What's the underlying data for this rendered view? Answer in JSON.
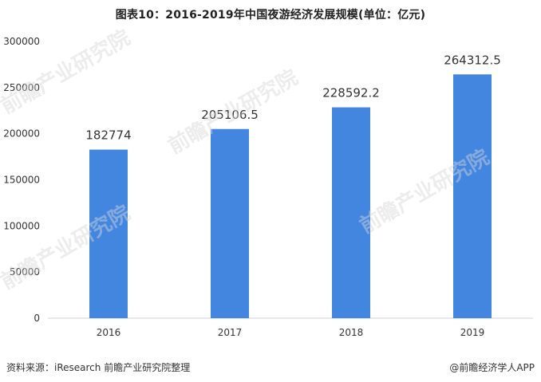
{
  "title": "图表10：2016-2019年中国夜游经济发展规模(单位：亿元)",
  "source": "资料来源：iResearch 前瞻产业研究院整理",
  "brand": "@前瞻经济学人APP",
  "colors": {
    "bar": "#4286e0",
    "axis": "#d0d0d0",
    "text": "#333333"
  },
  "chart_data": {
    "type": "bar",
    "title": "图表10：2016-2019年中国夜游经济发展规模(单位：亿元)",
    "xlabel": "",
    "ylabel": "",
    "categories": [
      "2016",
      "2017",
      "2018",
      "2019"
    ],
    "values": [
      182774,
      205106.5,
      228592.2,
      264312.5
    ],
    "value_labels": [
      "182774",
      "205106.5",
      "228592.2",
      "264312.5"
    ],
    "yticks": [
      "0",
      "50000",
      "100000",
      "150000",
      "200000",
      "250000",
      "300000"
    ],
    "ylim": [
      0,
      300000
    ],
    "grid": false,
    "legend": "none"
  }
}
